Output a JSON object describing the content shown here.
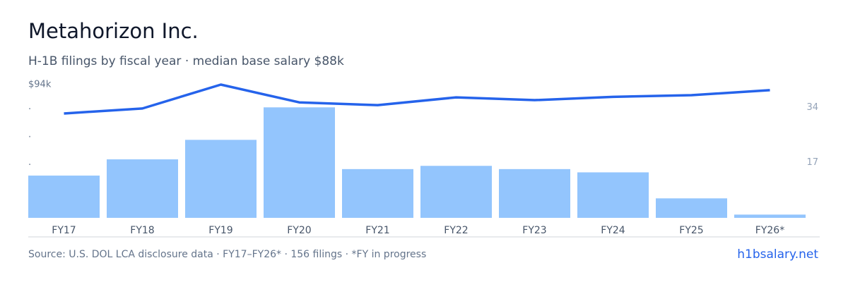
{
  "chart_data": {
    "type": "combo",
    "title": "Metahorizon Inc.",
    "subtitle": "H-1B filings by fiscal year · median base salary $88k",
    "source": "Source: U.S. DOL LCA disclosure data · FY17–FY26* · 156 filings · *FY in progress",
    "brand": "h1bsalary.net",
    "categories": [
      "FY17",
      "FY18",
      "FY19",
      "FY20",
      "FY21",
      "FY22",
      "FY23",
      "FY24",
      "FY25",
      "FY26*"
    ],
    "series": [
      {
        "type": "bar",
        "axis": "y2",
        "color": "#93c5fd",
        "values": [
          13,
          18,
          24,
          34,
          15,
          16,
          15,
          14,
          6,
          1
        ]
      },
      {
        "type": "line",
        "color": "#2563eb",
        "values": [
          88.8,
          89.7,
          94,
          90.8,
          90.3,
          91.7,
          91.2,
          91.8,
          92.1,
          93
        ]
      }
    ],
    "ylim": [
      70,
      94
    ],
    "yticks": [
      {
        "value": 94,
        "label": "$94k"
      },
      {
        "value": 90,
        "label": "."
      },
      {
        "value": 85,
        "label": "."
      },
      {
        "value": 80,
        "label": "."
      }
    ],
    "y2lim": [
      0,
      41
    ],
    "y2ticks": [
      34,
      17
    ]
  }
}
